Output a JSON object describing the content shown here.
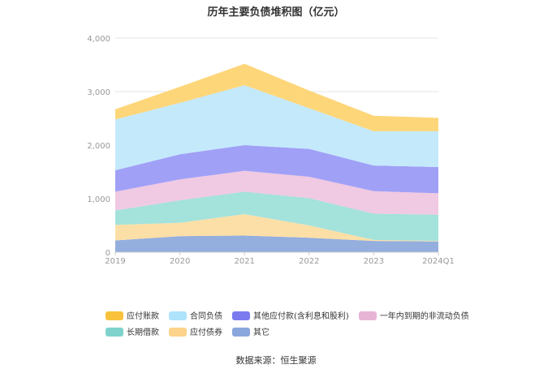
{
  "chart_data": {
    "type": "area",
    "stacked": true,
    "title": "历年主要负债堆积图（亿元）",
    "x": [
      "2019",
      "2020",
      "2021",
      "2022",
      "2023",
      "2024Q1"
    ],
    "yticks": [
      "0",
      "1,000",
      "2,000",
      "3,000",
      "4,000"
    ],
    "ylim": [
      0,
      4000
    ],
    "grid": true,
    "legend_position": "bottom",
    "series": [
      {
        "name": "其它",
        "color": "#94aede",
        "values": [
          220,
          300,
          310,
          270,
          210,
          200
        ]
      },
      {
        "name": "应付债券",
        "color": "#fcdfa6",
        "values": [
          290,
          250,
          400,
          230,
          20,
          10
        ]
      },
      {
        "name": "长期借款",
        "color": "#a4e2dc",
        "values": [
          270,
          420,
          420,
          510,
          490,
          490
        ]
      },
      {
        "name": "一年内到期的非流动负债",
        "color": "#f0c9e2",
        "values": [
          350,
          390,
          390,
          400,
          420,
          400
        ]
      },
      {
        "name": "其他应付款(含利息和股利)",
        "color": "#a0a0f7",
        "values": [
          400,
          470,
          480,
          520,
          480,
          490
        ]
      },
      {
        "name": "合同负债",
        "color": "#c4e9fb",
        "values": [
          950,
          960,
          1120,
          760,
          640,
          670
        ]
      },
      {
        "name": "应付账款",
        "color": "#fed67a",
        "values": [
          190,
          300,
          400,
          330,
          290,
          250
        ]
      }
    ]
  },
  "legend": {
    "row1": [
      {
        "name": "应付账款",
        "color": "#f9c23c"
      },
      {
        "name": "合同负债",
        "color": "#aee3fb"
      },
      {
        "name": "其他应付款(含利息和股利)",
        "color": "#7b7bef"
      },
      {
        "name": "一年内到期的非流动负债",
        "color": "#e8b4d6"
      }
    ],
    "row2": [
      {
        "name": "长期借款",
        "color": "#7fd3cc"
      },
      {
        "name": "应付债券",
        "color": "#fbd38a"
      },
      {
        "name": "其它",
        "color": "#8aa6dc"
      }
    ]
  },
  "source": "数据来源：恒生聚源"
}
